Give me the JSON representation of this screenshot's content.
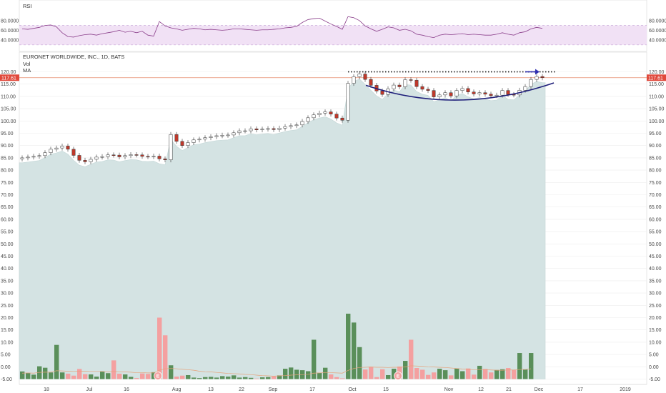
{
  "rsi_panel": {
    "label": "RSI",
    "y_ticks": [
      "80.0000",
      "60.0000",
      "40.0000"
    ],
    "band_upper": 70,
    "band_lower": 30
  },
  "main_panel": {
    "title": "EURONET WORLDWIDE, INC., 1D, BATS",
    "legend_vol": "Vol",
    "legend_ma": "MA",
    "last_price_label": "117.61",
    "y_ticks": [
      "120.00",
      "115.00",
      "110.00",
      "105.00",
      "100.00",
      "95.00",
      "90.00",
      "85.00",
      "80.00",
      "75.00",
      "70.00",
      "65.00",
      "60.00",
      "55.00",
      "50.00",
      "45.00",
      "40.00",
      "35.00",
      "30.00",
      "25.00",
      "20.00",
      "15.00",
      "10.00",
      "5.00",
      "0.00",
      "-5.00"
    ],
    "earnings_marker": "E"
  },
  "x_ticks": [
    "18",
    "Jul",
    "16",
    "Aug",
    "13",
    "22",
    "Sep",
    "17",
    "Oct",
    "15",
    "Nov",
    "12",
    "21",
    "Dec",
    "17",
    "2019"
  ],
  "colors": {
    "up_candle": "#ffffff",
    "down_candle": "#c0392b",
    "area_fill": "#d4e3e3",
    "vol_up": "#5a8f5a",
    "vol_down": "#f4a0a0",
    "rsi_band": "#f1e1f5",
    "rsi_line": "#8a3e8a",
    "price_line": "#e58a6a",
    "resistance": "#222222",
    "arrow": "#2f2fb0",
    "cup_curve": "#1f1f7a"
  },
  "chart_data": {
    "type": "candlestick",
    "ylim": [
      -5,
      122
    ],
    "closes": [
      85.0,
      85.3,
      85.6,
      85.9,
      87.1,
      88.5,
      89.0,
      89.8,
      88.5,
      86.0,
      84.0,
      83.4,
      84.4,
      85.3,
      85.5,
      86.2,
      86.1,
      85.4,
      85.9,
      86.3,
      86.2,
      85.6,
      85.5,
      85.7,
      84.6,
      84.2,
      94.5,
      91.7,
      90.0,
      91.2,
      92.3,
      92.6,
      93.2,
      93.6,
      94.0,
      94.2,
      94.3,
      95.2,
      96.0,
      96.0,
      96.8,
      96.4,
      96.7,
      96.9,
      96.5,
      97.1,
      97.7,
      98.1,
      98.4,
      99.8,
      101.3,
      102.5,
      103.2,
      103.7,
      102.8,
      101.2,
      100.3,
      115.3,
      118.0,
      119.1,
      116.9,
      114.5,
      112.2,
      110.8,
      113.1,
      114.6,
      113.9,
      116.8,
      116.6,
      114.0,
      112.9,
      112.4,
      109.8,
      110.6,
      111.5,
      110.2,
      112.4,
      113.2,
      111.8,
      111.0,
      111.5,
      110.9,
      110.3,
      110.5,
      112.4,
      110.8,
      110.6,
      112.5,
      114.0,
      116.9,
      118.1,
      117.6
    ],
    "volume": [
      3.1,
      2.5,
      1.8,
      5.2,
      4.6,
      2.7,
      13.9,
      2.7,
      2.2,
      1.4,
      4.1,
      2.0,
      1.9,
      1.0,
      3.1,
      2.4,
      7.6,
      2.2,
      1.9,
      0.9,
      0.4,
      2.3,
      2.1,
      2.8,
      25.0,
      17.8,
      5.6,
      1.0,
      1.4,
      1.6,
      0.6,
      0.4,
      0.8,
      0.9,
      0.6,
      1.2,
      1.0,
      1.5,
      0.6,
      0.8,
      0.5,
      0.2,
      0.7,
      0.8,
      1.1,
      1.5,
      4.2,
      4.7,
      3.8,
      3.6,
      3.2,
      16.0,
      2.6,
      4.6,
      1.9,
      0.8,
      0.3,
      26.6,
      23.0,
      13.0,
      3.9,
      5.0,
      0.8,
      4.0,
      1.6,
      4.2,
      5.1,
      7.4,
      16.0,
      4.5,
      3.8,
      1.7,
      2.7,
      4.2,
      3.6,
      1.5,
      4.3,
      3.2,
      4.3,
      1.8,
      5.4,
      4.1,
      2.7,
      3.7,
      4.0,
      4.5,
      3.7,
      10.6,
      3.9,
      10.6
    ],
    "volume_ma": [
      2.4,
      2.5,
      2.4,
      2.7,
      2.8,
      2.8,
      3.4,
      3.3,
      3.2,
      3.1,
      3.2,
      3.2,
      3.1,
      3.1,
      3.1,
      2.9,
      3.1,
      3.0,
      2.9,
      2.8,
      2.6,
      2.6,
      2.5,
      2.5,
      3.6,
      4.2,
      4.3,
      4.2,
      4.0,
      3.8,
      3.6,
      3.2,
      3.0,
      2.9,
      2.7,
      2.5,
      2.3,
      2.2,
      2.1,
      1.9,
      1.8,
      1.6,
      1.4,
      1.3,
      1.2,
      1.3,
      1.4,
      1.6,
      1.7,
      1.8,
      1.9,
      2.4,
      2.5,
      2.6,
      2.6,
      2.5,
      2.4,
      3.5,
      4.3,
      4.7,
      4.8,
      4.9,
      4.8,
      4.8,
      4.7,
      4.8,
      4.8,
      4.9,
      5.4,
      5.3,
      5.2,
      5.0,
      4.9,
      4.8,
      4.7,
      4.5,
      4.3,
      4.1,
      4.0,
      3.8,
      3.8,
      3.8,
      3.7,
      3.6,
      3.6,
      3.7,
      3.7,
      3.9,
      3.9,
      4.2
    ],
    "rsi": [
      63,
      62,
      64,
      66,
      70,
      71,
      67,
      55,
      47,
      46,
      49,
      51,
      52,
      50,
      53,
      55,
      57,
      60,
      56,
      58,
      55,
      58,
      50,
      48,
      78,
      69,
      65,
      63,
      60,
      62,
      64,
      63,
      61,
      62,
      61,
      60,
      61,
      63,
      63,
      62,
      61,
      60,
      61,
      61,
      62,
      63,
      65,
      66,
      68,
      76,
      82,
      84,
      85,
      79,
      73,
      68,
      62,
      88,
      86,
      80,
      69,
      63,
      58,
      62,
      67,
      65,
      60,
      62,
      59,
      52,
      50,
      47,
      45,
      50,
      52,
      51,
      52,
      53,
      51,
      52,
      51,
      50,
      50,
      52,
      55,
      52,
      50,
      55,
      57,
      63,
      66,
      64
    ],
    "earnings_index": [
      24,
      66
    ],
    "resistance_level": 120
  }
}
